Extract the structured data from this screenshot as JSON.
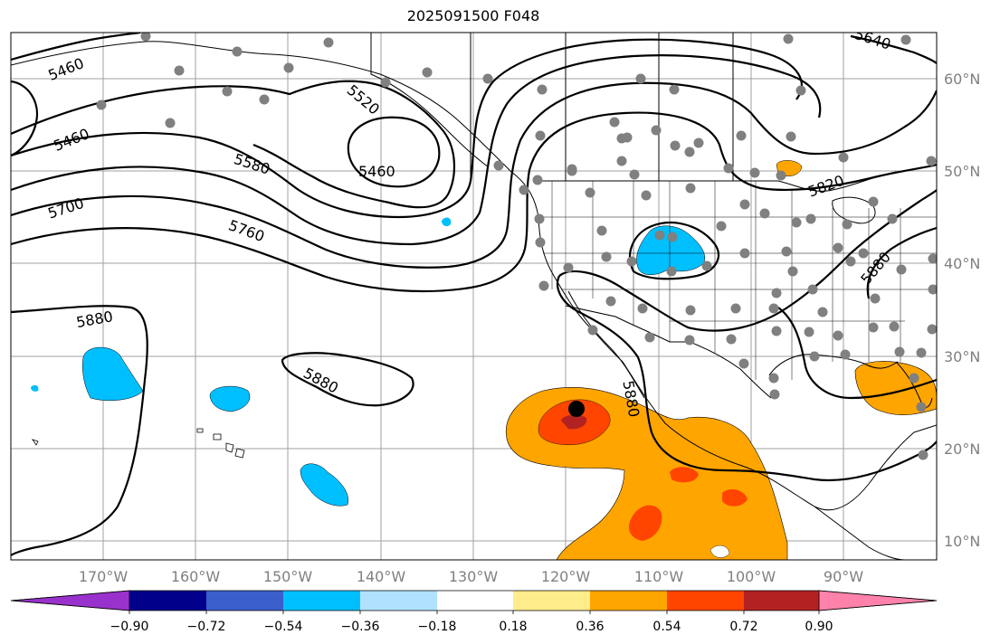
{
  "title": "2025091500 F048",
  "map": {
    "lon_labels": [
      "170°W",
      "160°W",
      "150°W",
      "140°W",
      "130°W",
      "120°W",
      "110°W",
      "100°W",
      "90°W"
    ],
    "lat_labels": [
      "10°N",
      "20°N",
      "30°N",
      "40°N",
      "50°N",
      "60°N"
    ],
    "contour_labels": [
      "5460",
      "5460",
      "5520",
      "5460",
      "5580",
      "5640",
      "5700",
      "5760",
      "5820",
      "5880",
      "5880",
      "5880",
      "5880"
    ],
    "grid_color": "#a0a0a0",
    "station_color": "#808080"
  },
  "colorbar": {
    "colors": [
      "#9932cc",
      "#00008b",
      "#3a5fcd",
      "#00bfff",
      "#b0e2ff",
      "#ffffff",
      "#ffec8b",
      "#ffa500",
      "#ff4500",
      "#b22222",
      "#ff82ab"
    ],
    "tick_labels": [
      "−0.90",
      "−0.72",
      "−0.54",
      "−0.36",
      "−0.18",
      "0.18",
      "0.36",
      "0.54",
      "0.72",
      "0.90"
    ]
  }
}
